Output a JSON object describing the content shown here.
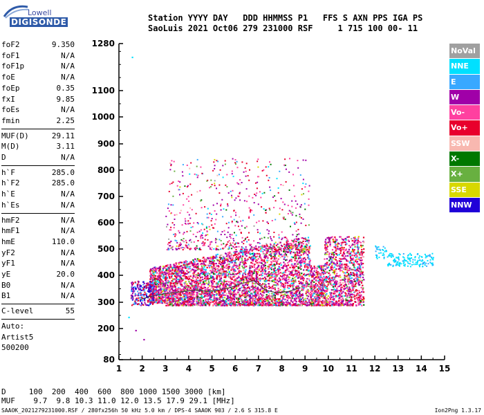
{
  "logo": {
    "top": "Lowell",
    "bottom": "DIGISONDE"
  },
  "header": {
    "row1": "Station YYYY DAY   DDD HHMMSS P1   FFS S AXN PPS IGA PS",
    "row2": "SaoLuis 2021 Oct06 279 231000 RSF     1 715 100 00- 11"
  },
  "params_group1": [
    {
      "k": "foF2",
      "v": "9.350"
    },
    {
      "k": "foF1",
      "v": "N/A"
    },
    {
      "k": "foF1p",
      "v": "N/A"
    },
    {
      "k": "foE",
      "v": "N/A"
    },
    {
      "k": "foEp",
      "v": "0.35"
    },
    {
      "k": "fxI",
      "v": "9.85"
    },
    {
      "k": "foEs",
      "v": "N/A"
    },
    {
      "k": "fmin",
      "v": "2.25"
    }
  ],
  "params_group2": [
    {
      "k": "MUF(D)",
      "v": "29.11"
    },
    {
      "k": "M(D)",
      "v": "3.11"
    },
    {
      "k": "D",
      "v": "N/A"
    }
  ],
  "params_group3": [
    {
      "k": "h`F",
      "v": "285.0"
    },
    {
      "k": "h`F2",
      "v": "285.0"
    },
    {
      "k": "h`E",
      "v": "N/A"
    },
    {
      "k": "h`Es",
      "v": "N/A"
    }
  ],
  "params_group4": [
    {
      "k": "hmF2",
      "v": "N/A"
    },
    {
      "k": "hmF1",
      "v": "N/A"
    },
    {
      "k": "hmE",
      "v": "110.0"
    },
    {
      "k": "yF2",
      "v": "N/A"
    },
    {
      "k": "yF1",
      "v": "N/A"
    },
    {
      "k": "yE",
      "v": "20.0"
    },
    {
      "k": "B0",
      "v": "N/A"
    },
    {
      "k": "B1",
      "v": "N/A"
    }
  ],
  "clevel": {
    "k": "C-level",
    "v": "55"
  },
  "auto": [
    "Auto:",
    "Artist5",
    "500200"
  ],
  "legend": [
    {
      "label": "NoVal",
      "color": "#a0a0a0"
    },
    {
      "label": "NNE",
      "color": "#00e0ff"
    },
    {
      "label": "E",
      "color": "#38a8ff"
    },
    {
      "label": "W",
      "color": "#a000a8"
    },
    {
      "label": "Vo-",
      "color": "#ff40a0"
    },
    {
      "label": "Vo+",
      "color": "#e8002c"
    },
    {
      "label": "SSW",
      "color": "#f8b8b0"
    },
    {
      "label": "X-",
      "color": "#007800"
    },
    {
      "label": "X+",
      "color": "#68b040"
    },
    {
      "label": "SSE",
      "color": "#d8d800"
    },
    {
      "label": "NNW",
      "color": "#2000d8"
    }
  ],
  "muf_table": {
    "d_row": "D     100  200  400  600  800 1000 1500 3000 [km]",
    "muf_row": "MUF    9.7  9.8 10.3 11.0 12.0 13.5 17.9 29.1 [MHz]"
  },
  "footer": {
    "text": "SAAOK_2021279231000.RSF / 280fx256h 50 kHz 5.0 km / DPS-4 SAAOK 903 / 2.6 S 315.8 E",
    "version": "Ion2Png 1.3.17"
  },
  "chart_data": {
    "type": "scatter",
    "title": "",
    "xlabel": "",
    "ylabel": "",
    "xlim": [
      1,
      15
    ],
    "ylim": [
      80,
      1280
    ],
    "x_ticks": [
      1,
      2,
      3,
      4,
      5,
      6,
      7,
      8,
      9,
      10,
      11,
      12,
      13,
      14,
      15
    ],
    "y_ticks": [
      80,
      200,
      300,
      400,
      500,
      600,
      700,
      800,
      900,
      1000,
      1100,
      1280
    ],
    "y_scale": "reciprocal-like (ionogram virtual height)",
    "note_series": "Dense echo cloud 2.3–11.5 MHz at 290–550 km; sparse traces up to ~850 km; tail 12–14.5 MHz at ~450 km",
    "trace_line": {
      "x": [
        1.9,
        2.3,
        2.8,
        3.3,
        3.8,
        4.3,
        4.8,
        5.3,
        5.8,
        6.3,
        6.8,
        7.3,
        7.8,
        8.3,
        8.8
      ],
      "y": [
        310,
        320,
        330,
        335,
        340,
        345,
        340,
        345,
        355,
        370,
        380,
        345,
        335,
        340,
        355
      ]
    },
    "outliers": [
      {
        "x": 1.55,
        "y": 1230,
        "color": "#00e0ff"
      },
      {
        "x": 1.4,
        "y": 245,
        "color": "#00e0ff"
      },
      {
        "x": 1.7,
        "y": 195,
        "color": "#a000a8"
      },
      {
        "x": 2.05,
        "y": 160,
        "color": "#a000a8"
      }
    ]
  }
}
